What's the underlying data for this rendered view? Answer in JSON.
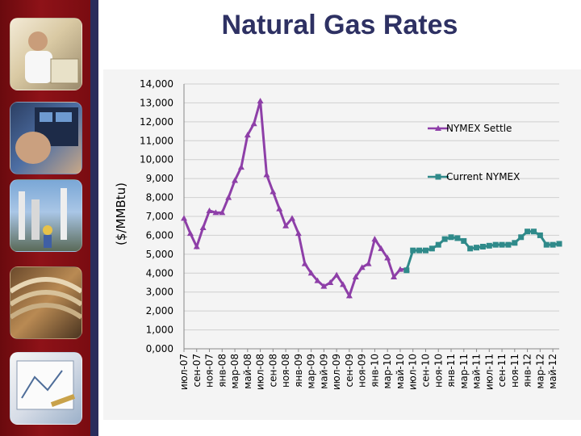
{
  "slide": {
    "title": "Natural Gas Rates"
  },
  "sidebar": {
    "photos": [
      {
        "icon": "worker-with-blueprints-photo"
      },
      {
        "icon": "control-panel-operator-photo"
      },
      {
        "icon": "refinery-workers-photo"
      },
      {
        "icon": "industrial-pipes-photo"
      },
      {
        "icon": "engineering-drawings-photo"
      }
    ]
  },
  "chart_data": {
    "type": "line",
    "title": "",
    "ylabel": "($/MMBtu)",
    "xlabel": "",
    "ylim": [
      0,
      14
    ],
    "yticks": [
      "0,000",
      "1,000",
      "2,000",
      "3,000",
      "4,000",
      "5,000",
      "6,000",
      "7,000",
      "8,000",
      "9,000",
      "10,000",
      "11,000",
      "12,000",
      "13,000",
      "14,000"
    ],
    "grid": true,
    "legend_placement": "right",
    "categories": [
      "июл-07",
      "сен-07",
      "ноя-07",
      "янв-08",
      "мар-08",
      "май-08",
      "июл-08",
      "сен-08",
      "ноя-08",
      "янв-09",
      "мар-09",
      "май-09",
      "июл-09",
      "сен-09",
      "ноя-09",
      "янв-10",
      "мар-10",
      "май-10",
      "июл-10",
      "сен-10",
      "ноя-10",
      "янв-11",
      "мар-11",
      "май-11",
      "июл-11",
      "сен-11",
      "ноя-11",
      "янв-12",
      "мар-12",
      "май-12"
    ],
    "x_months": [
      "2007-07",
      "2007-08",
      "2007-09",
      "2007-10",
      "2007-11",
      "2007-12",
      "2008-01",
      "2008-02",
      "2008-03",
      "2008-04",
      "2008-05",
      "2008-06",
      "2008-07",
      "2008-08",
      "2008-09",
      "2008-10",
      "2008-11",
      "2008-12",
      "2009-01",
      "2009-02",
      "2009-03",
      "2009-04",
      "2009-05",
      "2009-06",
      "2009-07",
      "2009-08",
      "2009-09",
      "2009-10",
      "2009-11",
      "2009-12",
      "2010-01",
      "2010-02",
      "2010-03",
      "2010-04",
      "2010-05",
      "2010-06",
      "2010-07",
      "2010-08",
      "2010-09",
      "2010-10",
      "2010-11",
      "2010-12",
      "2011-01",
      "2011-02",
      "2011-03",
      "2011-04",
      "2011-05",
      "2011-06",
      "2011-07",
      "2011-08",
      "2011-09",
      "2011-10",
      "2011-11",
      "2011-12",
      "2012-01",
      "2012-02",
      "2012-03",
      "2012-04",
      "2012-05",
      "2012-06"
    ],
    "series": [
      {
        "name": "NYMEX Settle",
        "color": "#8e3fa8",
        "marker": "triangle",
        "x": [
          "2007-07",
          "2007-08",
          "2007-09",
          "2007-10",
          "2007-11",
          "2007-12",
          "2008-01",
          "2008-02",
          "2008-03",
          "2008-04",
          "2008-05",
          "2008-06",
          "2008-07",
          "2008-08",
          "2008-09",
          "2008-10",
          "2008-11",
          "2008-12",
          "2009-01",
          "2009-02",
          "2009-03",
          "2009-04",
          "2009-05",
          "2009-06",
          "2009-07",
          "2009-08",
          "2009-09",
          "2009-10",
          "2009-11",
          "2009-12",
          "2010-01",
          "2010-02",
          "2010-03",
          "2010-04",
          "2010-05",
          "2010-06"
        ],
        "values": [
          6.9,
          6.1,
          5.4,
          6.4,
          7.3,
          7.2,
          7.2,
          8.0,
          8.9,
          9.6,
          11.3,
          11.9,
          13.1,
          9.2,
          8.3,
          7.4,
          6.5,
          6.9,
          6.1,
          4.5,
          4.0,
          3.6,
          3.3,
          3.5,
          3.9,
          3.4,
          2.8,
          3.8,
          4.3,
          4.5,
          5.8,
          5.3,
          4.8,
          3.8,
          4.2,
          4.2
        ]
      },
      {
        "name": "Current NYMEX",
        "color": "#2f8a8a",
        "marker": "square",
        "x": [
          "2010-06",
          "2010-07",
          "2010-08",
          "2010-09",
          "2010-10",
          "2010-11",
          "2010-12",
          "2011-01",
          "2011-02",
          "2011-03",
          "2011-04",
          "2011-05",
          "2011-06",
          "2011-07",
          "2011-08",
          "2011-09",
          "2011-10",
          "2011-11",
          "2011-12",
          "2012-01",
          "2012-02",
          "2012-03",
          "2012-04",
          "2012-05",
          "2012-06"
        ],
        "values": [
          4.15,
          5.2,
          5.2,
          5.2,
          5.3,
          5.5,
          5.8,
          5.9,
          5.85,
          5.7,
          5.3,
          5.35,
          5.4,
          5.45,
          5.5,
          5.5,
          5.5,
          5.6,
          5.9,
          6.2,
          6.2,
          6.0,
          5.5,
          5.5,
          5.55
        ]
      }
    ]
  }
}
